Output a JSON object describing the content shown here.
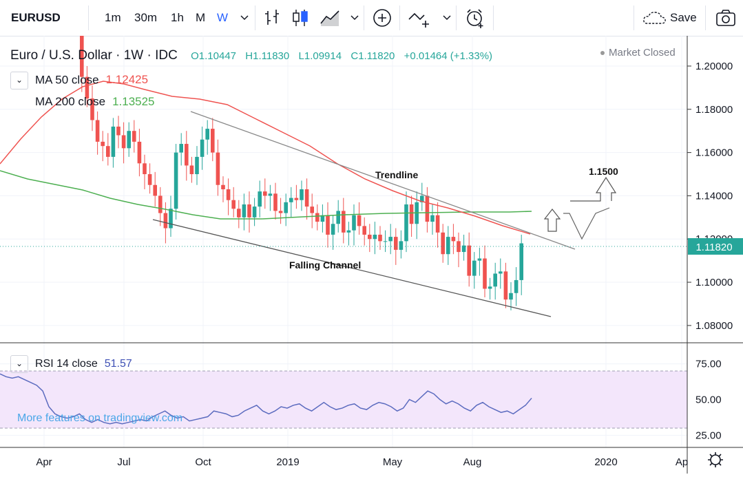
{
  "toolbar": {
    "symbol": "EURUSD",
    "intervals": [
      "1m",
      "30m",
      "1h",
      "M",
      "W"
    ],
    "active_interval": "W",
    "save_label": "Save"
  },
  "header": {
    "title": "Euro / U.S. Dollar · 1W · IDC",
    "open": "O1.10447",
    "high": "H1.11830",
    "low": "L1.09914",
    "close": "C1.11820",
    "change": "+0.01464 (+1.33%)",
    "market_status": "Market Closed"
  },
  "ma50": {
    "label": "MA 50 close",
    "value": "1.12425",
    "color": "#ef5350"
  },
  "ma200": {
    "label": "MA 200 close",
    "value": "1.13525",
    "color": "#4caf50"
  },
  "rsi": {
    "label": "RSI 14 close",
    "value": "51.57",
    "color": "#5b6bbf",
    "ticks": [
      "75.00",
      "50.00",
      "25.00"
    ]
  },
  "price_axis": {
    "ticks": [
      "1.20000",
      "1.18000",
      "1.16000",
      "1.14000",
      "1.12000",
      "1.10000",
      "1.08000"
    ],
    "last_price": "1.11820"
  },
  "time_axis": {
    "labels": [
      "Apr",
      "Jul",
      "Oct",
      "2019",
      "May",
      "Aug",
      "2020",
      "Ap"
    ]
  },
  "annotations": {
    "trendline": "Trendline",
    "channel": "Falling Channel",
    "target": "1.1500"
  },
  "watermark": "More features on tradingview.com",
  "colors": {
    "up": "#26a69a",
    "down": "#ef5350",
    "grid": "#f0f3fa"
  },
  "chart_data": {
    "type": "candlestick",
    "symbol": "EURUSD",
    "timeframe": "1W",
    "ylim": [
      1.072,
      1.214
    ],
    "last_close": 1.1182,
    "series": [
      {
        "name": "MA 50 close",
        "last_value": 1.12425
      },
      {
        "name": "MA 200 close",
        "last_value": 1.13525
      },
      {
        "name": "RSI 14 close",
        "last_value": 51.57
      }
    ],
    "annotations": [
      "Trendline",
      "Falling Channel",
      "1.1500"
    ]
  }
}
